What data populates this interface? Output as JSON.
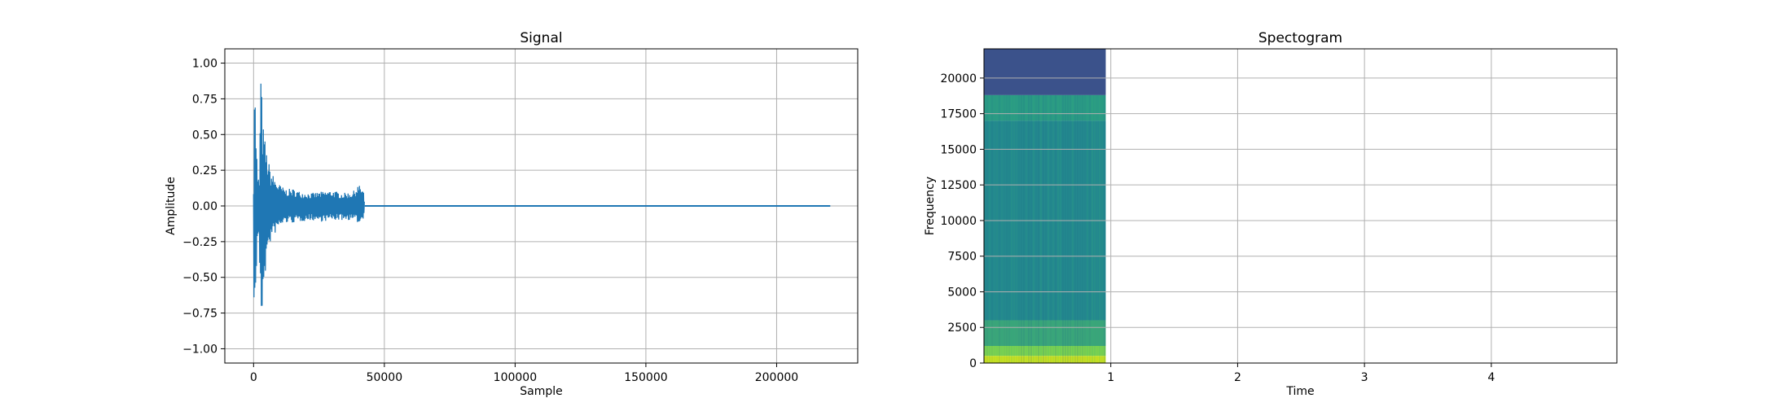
{
  "chart_data": [
    {
      "type": "line",
      "title": "Signal",
      "xlabel": "Sample",
      "ylabel": "Amplitude",
      "xlim": [
        -11000,
        231000
      ],
      "ylim": [
        -1.1,
        1.1
      ],
      "grid": true,
      "xticks": [
        0,
        50000,
        100000,
        150000,
        200000
      ],
      "xtick_labels": [
        "0",
        "50000",
        "100000",
        "150000",
        "200000"
      ],
      "yticks": [
        1.0,
        0.75,
        0.5,
        0.25,
        0.0,
        -0.25,
        -0.5,
        -0.75,
        -1.0
      ],
      "ytick_labels": [
        "1.00",
        "0.75",
        "0.50",
        "0.25",
        "0.00",
        "−0.25",
        "−0.50",
        "−0.75",
        "−1.00"
      ],
      "series_color": "#1f77b4",
      "envelope": {
        "x": [
          0,
          300,
          900,
          1500,
          2200,
          2800,
          3400,
          4000,
          5000,
          6500,
          8000,
          10000,
          12000,
          15000,
          18000,
          22000,
          26000,
          30000,
          34000,
          38000,
          40000,
          42000,
          42500
        ],
        "upper": [
          0.15,
          1.0,
          0.6,
          0.2,
          0.2,
          1.0,
          0.6,
          0.52,
          0.38,
          0.25,
          0.2,
          0.15,
          0.12,
          0.12,
          0.1,
          0.09,
          0.1,
          0.11,
          0.09,
          0.1,
          0.15,
          0.12,
          0.0
        ],
        "lower": [
          -0.3,
          -1.0,
          -0.6,
          -0.2,
          -0.3,
          -1.0,
          -0.7,
          -0.55,
          -0.4,
          -0.25,
          -0.2,
          -0.15,
          -0.12,
          -0.12,
          -0.11,
          -0.1,
          -0.11,
          -0.1,
          -0.1,
          -0.1,
          -0.12,
          -0.1,
          0.0
        ]
      },
      "flat_segment": {
        "x": [
          42500,
          220500
        ],
        "y": [
          0,
          0
        ]
      }
    },
    {
      "type": "heatmap",
      "title": "Spectogram",
      "xlabel": "Time",
      "ylabel": "Frequency",
      "xlim": [
        0,
        4.99
      ],
      "ylim": [
        0,
        22050
      ],
      "grid": true,
      "xticks": [
        1,
        2,
        3,
        4
      ],
      "xtick_labels": [
        "1",
        "2",
        "3",
        "4"
      ],
      "yticks": [
        0,
        2500,
        5000,
        7500,
        10000,
        12500,
        15000,
        17500,
        20000
      ],
      "ytick_labels": [
        "0",
        "2500",
        "5000",
        "7500",
        "10000",
        "12500",
        "15000",
        "17500",
        "20000"
      ],
      "data_extent_time": [
        0,
        0.96
      ],
      "colormap": "viridis",
      "bands": [
        {
          "f0": 18800,
          "f1": 22050,
          "color": "#3b528b"
        },
        {
          "f0": 17000,
          "f1": 18800,
          "color": "#2a9a84"
        },
        {
          "f0": 3000,
          "f1": 17000,
          "color": "#23888e"
        },
        {
          "f0": 1200,
          "f1": 3000,
          "color": "#3aa47a"
        },
        {
          "f0": 500,
          "f1": 1200,
          "color": "#7ad151"
        },
        {
          "f0": 0,
          "f1": 500,
          "color": "#c8e020"
        }
      ]
    }
  ]
}
